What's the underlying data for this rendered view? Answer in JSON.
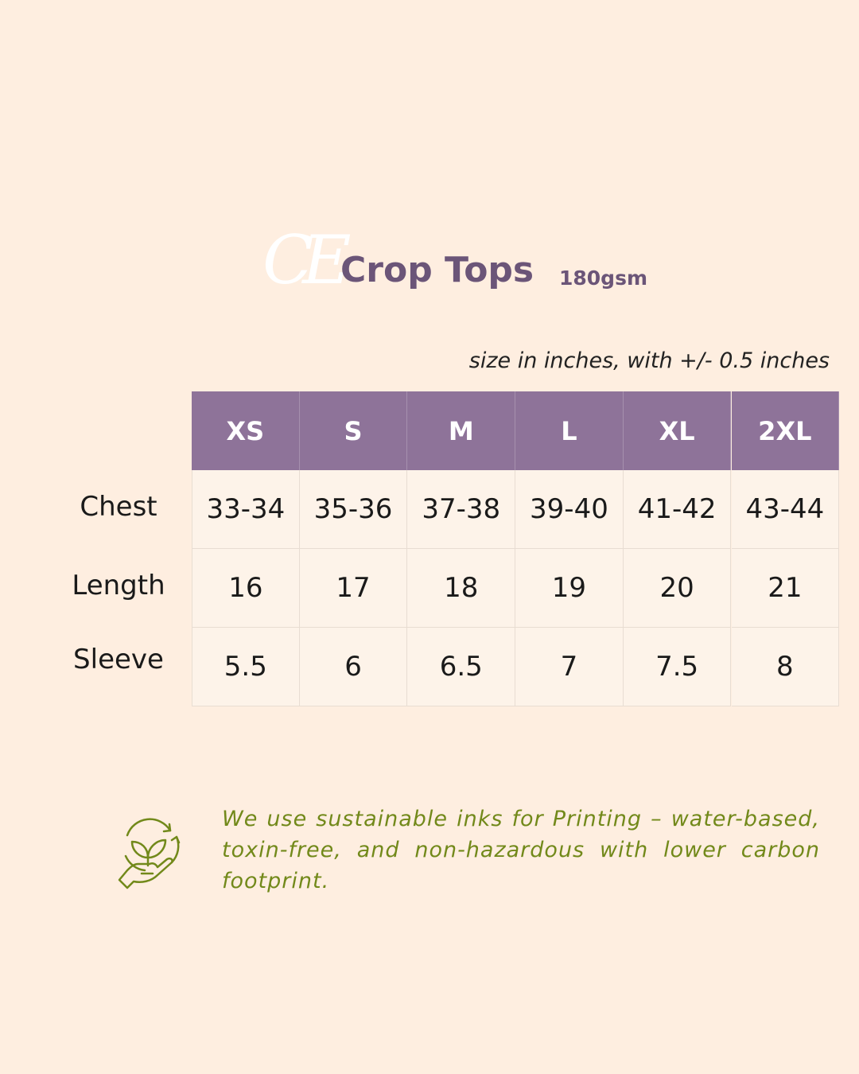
{
  "logo": "CE",
  "header": {
    "title": "Crop Tops",
    "subtitle": "180gsm"
  },
  "note": "size in inches, with +/- 0.5 inches",
  "table": {
    "columns": [
      "XS",
      "S",
      "M",
      "L",
      "XL",
      "2XL"
    ],
    "rows": [
      {
        "label": "Chest",
        "values": [
          "33-34",
          "35-36",
          "37-38",
          "39-40",
          "41-42",
          "43-44"
        ]
      },
      {
        "label": "Length",
        "values": [
          "16",
          "17",
          "18",
          "19",
          "20",
          "21"
        ]
      },
      {
        "label": "Sleeve",
        "values": [
          "5.5",
          "6",
          "6.5",
          "7",
          "7.5",
          "8"
        ]
      }
    ]
  },
  "footer": {
    "text": "We use sustainable inks for Printing – water-based, toxin-free, and non-hazardous with lower carbon footprint."
  }
}
